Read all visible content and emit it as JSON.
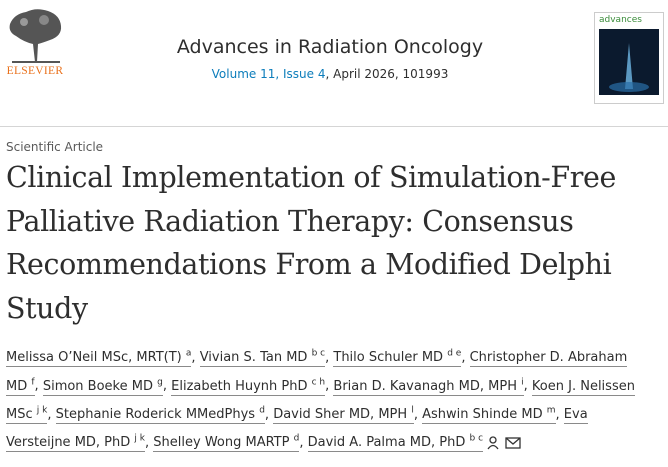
{
  "header": {
    "publisher": "ELSEVIER",
    "journal": "Advances in Radiation Oncology",
    "volume_link": "Volume 11, Issue 4",
    "issue_rest": ", April 2026, 101993",
    "cover_title": "advances"
  },
  "article": {
    "type": "Scientific Article",
    "title_lines": [
      "Clinical Implementation of Simulation-Free",
      "Palliative Radiation Therapy: Consensus",
      "Recommendations From a Modified Delphi",
      "Study"
    ],
    "separator": ",",
    "authors": [
      {
        "name": "Melissa O’Neil MSc, MRT(T)",
        "aff": "a"
      },
      {
        "name": "Vivian S. Tan MD",
        "aff": "b c"
      },
      {
        "name": "Thilo Schuler MD",
        "aff": "d e"
      },
      {
        "name": "Christopher D. Abraham MD",
        "aff": "f"
      },
      {
        "name": "Simon Boeke MD",
        "aff": "g"
      },
      {
        "name": "Elizabeth Huynh PhD",
        "aff": "c h"
      },
      {
        "name": "Brian D. Kavanagh MD, MPH",
        "aff": "i"
      },
      {
        "name": "Koen J. Nelissen MSc",
        "aff": "j k"
      },
      {
        "name": "Stephanie Roderick MMedPhys",
        "aff": "d"
      },
      {
        "name": "David Sher MD, MPH",
        "aff": "l"
      },
      {
        "name": "Ashwin Shinde MD",
        "aff": "m"
      },
      {
        "name": "Eva Versteijne MD, PhD",
        "aff": "j k"
      },
      {
        "name": "Shelley Wong MARTP",
        "aff": "d"
      },
      {
        "name": "David A. Palma MD, PhD",
        "aff": "b c"
      }
    ]
  }
}
